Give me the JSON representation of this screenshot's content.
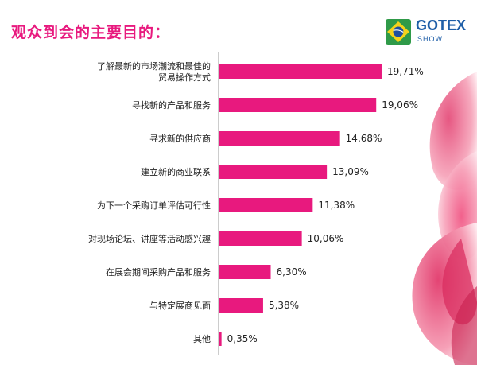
{
  "header": {
    "title": "观众到会的主要目的：",
    "logo_brand": "GOTEX",
    "logo_sub": "SHOW"
  },
  "colors": {
    "accent": "#e8197e",
    "bar": "#e8197e",
    "axis": "#999999"
  },
  "chart_data": {
    "type": "bar",
    "orientation": "horizontal",
    "title": "观众到会的主要目的：",
    "categories": [
      [
        "了解最新的市场潮流和最佳的",
        "贸易操作方式"
      ],
      [
        "寻找新的产品和服务"
      ],
      [
        "寻求新的供应商"
      ],
      [
        "建立新的商业联系"
      ],
      [
        "为下一个采购订单评估可行性"
      ],
      [
        "对现场论坛、讲座等活动感兴趣"
      ],
      [
        "在展会期间采购产品和服务"
      ],
      [
        "与特定展商见面"
      ],
      [
        "其他"
      ]
    ],
    "values": [
      19.71,
      19.06,
      14.68,
      13.09,
      11.38,
      10.06,
      6.3,
      5.38,
      0.35
    ],
    "value_labels": [
      "19,71%",
      "19,06%",
      "14,68%",
      "13,09%",
      "11,38%",
      "10,06%",
      "6,30%",
      "5,38%",
      "0,35%"
    ],
    "xlim": [
      0,
      25
    ],
    "grid": false,
    "legend": "none"
  }
}
